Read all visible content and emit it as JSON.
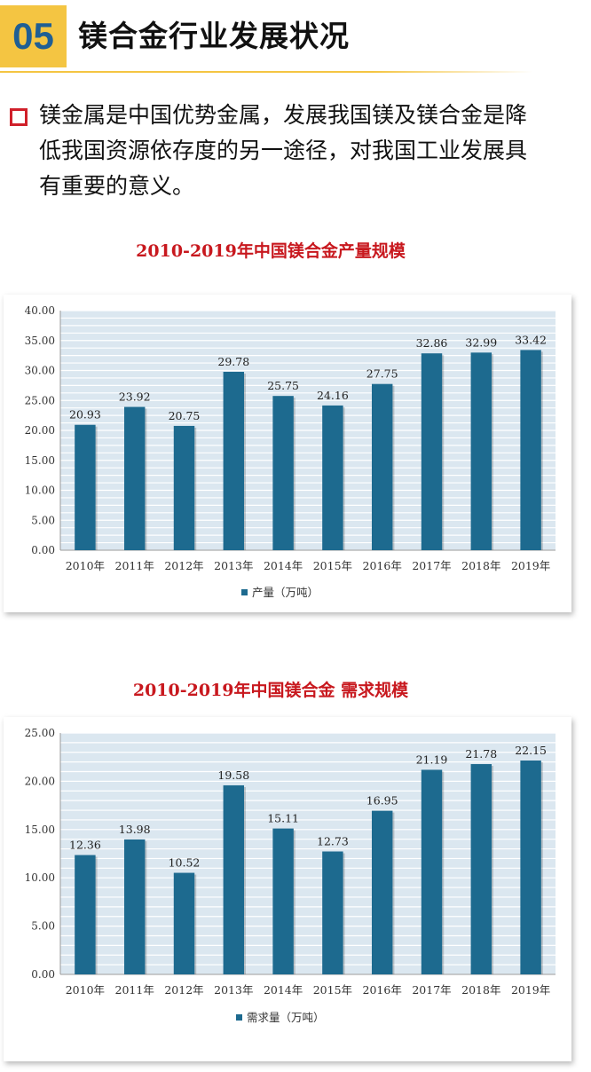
{
  "header": {
    "number": "05",
    "title": "镁合金行业发展状况"
  },
  "intro": {
    "text": "镁金属是中国优势金属，发展我国镁及镁合金是降低我国资源依存度的另一途径，对我国工业发展具有重要的意义。"
  },
  "colors": {
    "accent": "#f4c542",
    "number_text": "#1f5f94",
    "bar": "#1d6a8f",
    "title_red": "#c8181e",
    "plot_bg": "#dbe7f0",
    "bullet": "#d0202a"
  },
  "chart_data": [
    {
      "type": "bar",
      "title": "2010-2019年中国镁合金产量规模",
      "categories": [
        "2010年",
        "2011年",
        "2012年",
        "2013年",
        "2014年",
        "2015年",
        "2016年",
        "2017年",
        "2018年",
        "2019年"
      ],
      "series": [
        {
          "name": "产量（万吨）",
          "values": [
            20.93,
            23.92,
            20.75,
            29.78,
            25.75,
            24.16,
            27.75,
            32.86,
            32.99,
            33.42
          ]
        }
      ],
      "value_labels": [
        "20.93",
        "23.92",
        "20.75",
        "29.78",
        "25.75",
        "24.16",
        "27.75",
        "32.86",
        "32.99",
        "33.42"
      ],
      "ylim": [
        0,
        40
      ],
      "yticks": [
        0,
        5,
        10,
        15,
        20,
        25,
        30,
        35,
        40
      ],
      "ytick_labels": [
        "0.00",
        "5.00",
        "10.00",
        "15.00",
        "20.00",
        "25.00",
        "30.00",
        "35.00",
        "40.00"
      ],
      "legend_label": "产量（万吨）",
      "legend_position": "bottom",
      "grid": true
    },
    {
      "type": "bar",
      "title": "2010-2019年中国镁合金 需求规模",
      "categories": [
        "2010年",
        "2011年",
        "2012年",
        "2013年",
        "2014年",
        "2015年",
        "2016年",
        "2017年",
        "2018年",
        "2019年"
      ],
      "series": [
        {
          "name": "需求量（万吨）",
          "values": [
            12.36,
            13.98,
            10.52,
            19.58,
            15.11,
            12.73,
            16.95,
            21.19,
            21.78,
            22.15
          ]
        }
      ],
      "value_labels": [
        "12.36",
        "13.98",
        "10.52",
        "19.58",
        "15.11",
        "12.73",
        "16.95",
        "21.19",
        "21.78",
        "22.15"
      ],
      "ylim": [
        0,
        25
      ],
      "yticks": [
        0,
        5,
        10,
        15,
        20,
        25
      ],
      "ytick_labels": [
        "0.00",
        "5.00",
        "10.00",
        "15.00",
        "20.00",
        "25.00"
      ],
      "legend_label": "需求量（万吨）",
      "legend_position": "bottom",
      "grid": true
    }
  ]
}
